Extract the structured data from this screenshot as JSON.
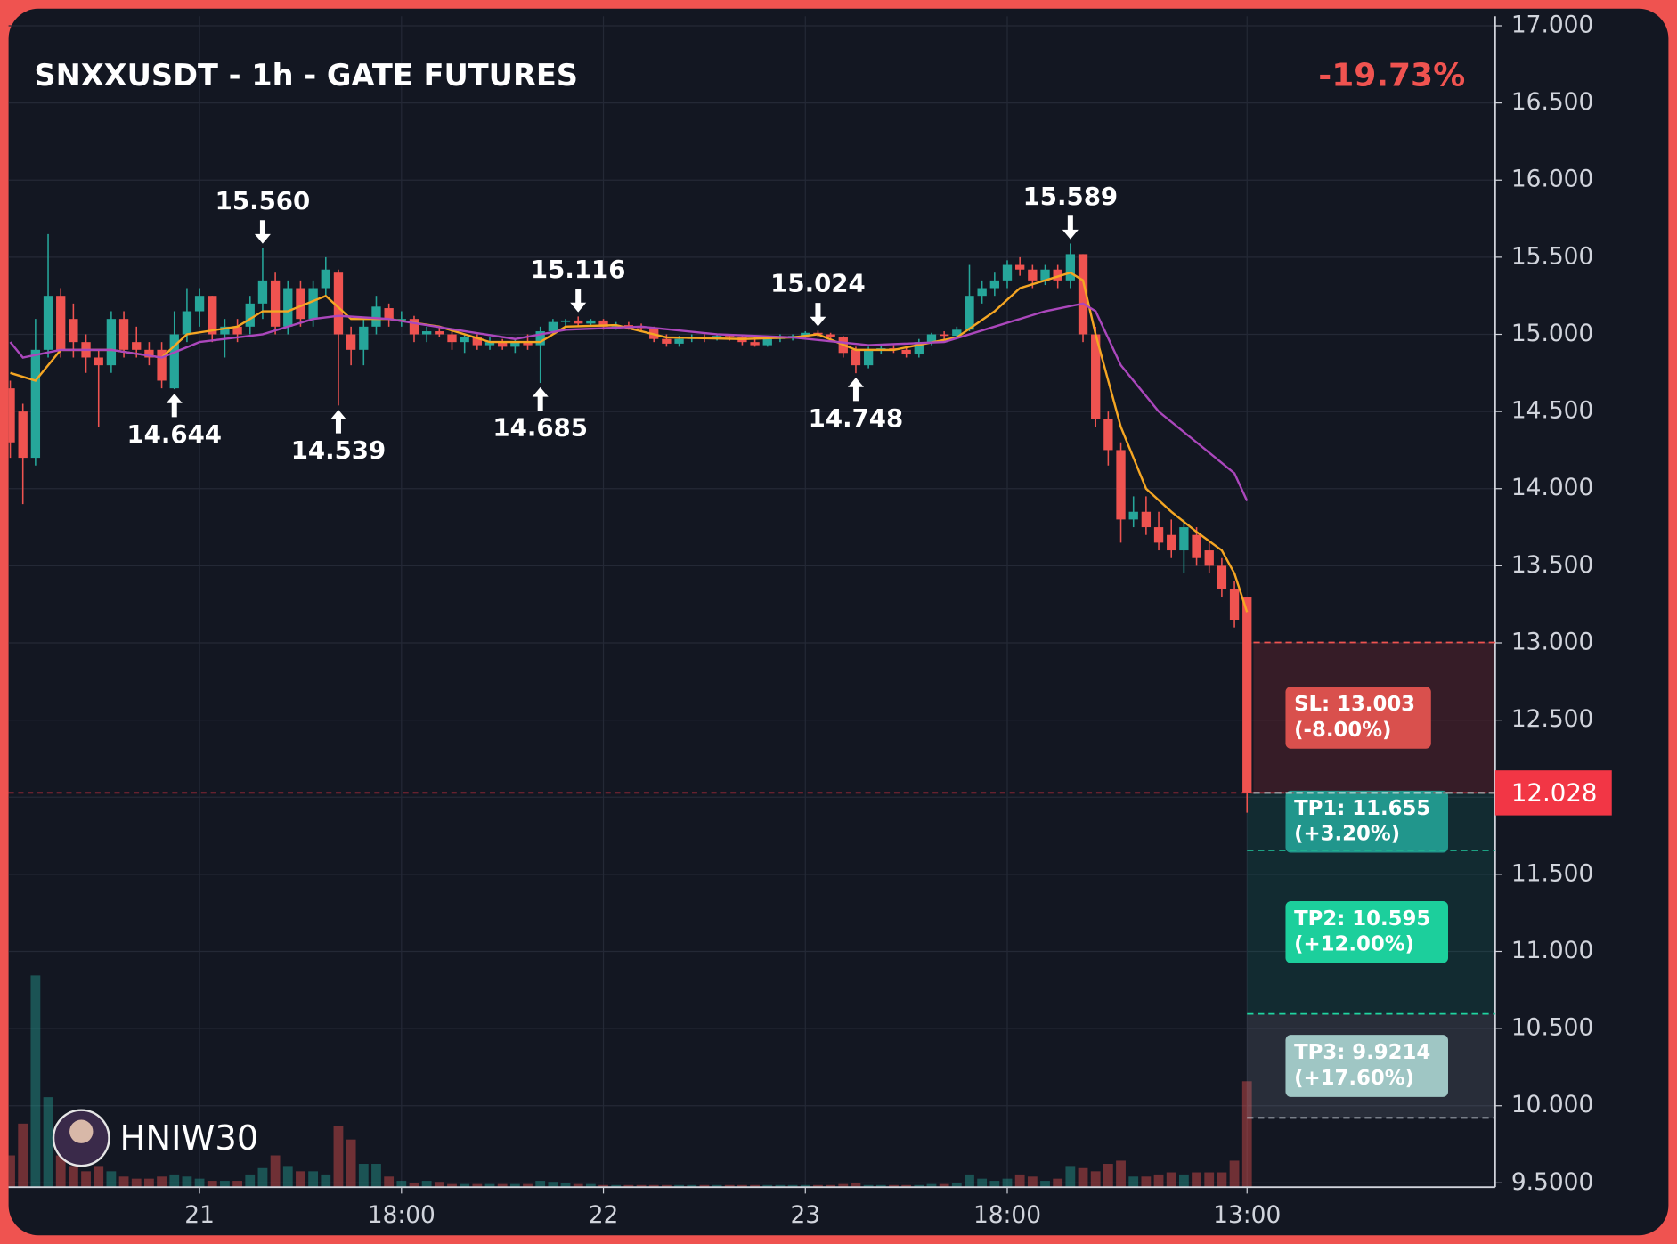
{
  "chart_data": {
    "type": "candlestick",
    "title": "SNXXUSDT - 1h - GATE FUTURES",
    "change": "-19.73%",
    "watermark": "HNIW30",
    "up_color": "#26a69a",
    "down_color": "#ef5350",
    "grid": true,
    "categories": [
      null,
      null,
      null,
      null,
      null,
      null,
      null,
      null,
      null,
      null,
      null,
      null,
      null,
      null,
      null,
      "21",
      null,
      null,
      null,
      null,
      null,
      null,
      null,
      null,
      null,
      null,
      null,
      null,
      null,
      null,
      null,
      "18:00",
      null,
      null,
      null,
      null,
      null,
      null,
      null,
      null,
      null,
      null,
      null,
      null,
      null,
      null,
      null,
      "22",
      null,
      null,
      null,
      null,
      null,
      null,
      null,
      null,
      null,
      null,
      null,
      null,
      null,
      null,
      null,
      "23",
      null,
      null,
      null,
      null,
      null,
      null,
      null,
      null,
      null,
      null,
      null,
      null,
      null,
      null,
      null,
      "18:00",
      null,
      null,
      null,
      null,
      null,
      null,
      null,
      null,
      null,
      null,
      null,
      null,
      null,
      null,
      null,
      null,
      null,
      null,
      "13:00"
    ],
    "ohlc": [
      [
        14.65,
        14.7,
        14.2,
        14.3
      ],
      [
        14.5,
        14.55,
        13.9,
        14.2
      ],
      [
        14.2,
        15.1,
        14.15,
        14.9
      ],
      [
        14.9,
        15.65,
        14.85,
        15.25
      ],
      [
        15.25,
        15.3,
        14.85,
        14.9
      ],
      [
        15.1,
        15.2,
        14.85,
        14.95
      ],
      [
        14.95,
        15.0,
        14.75,
        14.85
      ],
      [
        14.85,
        14.9,
        14.4,
        14.8
      ],
      [
        14.8,
        15.15,
        14.75,
        15.1
      ],
      [
        15.1,
        15.15,
        14.85,
        14.9
      ],
      [
        14.95,
        15.05,
        14.85,
        14.9
      ],
      [
        14.9,
        14.95,
        14.8,
        14.85
      ],
      [
        14.9,
        14.95,
        14.65,
        14.7
      ],
      [
        14.65,
        15.15,
        14.644,
        15.0
      ],
      [
        15.0,
        15.3,
        14.95,
        15.15
      ],
      [
        15.15,
        15.3,
        15.05,
        15.25
      ],
      [
        15.25,
        15.25,
        14.95,
        15.0
      ],
      [
        15.0,
        15.1,
        14.85,
        15.05
      ],
      [
        15.05,
        15.1,
        14.95,
        15.0
      ],
      [
        15.05,
        15.25,
        15.0,
        15.2
      ],
      [
        15.2,
        15.56,
        15.1,
        15.35
      ],
      [
        15.35,
        15.4,
        15.0,
        15.05
      ],
      [
        15.05,
        15.35,
        15.0,
        15.3
      ],
      [
        15.3,
        15.35,
        15.05,
        15.1
      ],
      [
        15.1,
        15.35,
        15.05,
        15.3
      ],
      [
        15.3,
        15.5,
        15.25,
        15.42
      ],
      [
        15.4,
        15.42,
        14.539,
        15.0
      ],
      [
        15.0,
        15.05,
        14.8,
        14.9
      ],
      [
        14.9,
        15.1,
        14.8,
        15.05
      ],
      [
        15.05,
        15.25,
        15.0,
        15.18
      ],
      [
        15.17,
        15.2,
        15.05,
        15.1
      ],
      [
        15.1,
        15.15,
        15.05,
        15.1
      ],
      [
        15.1,
        15.12,
        14.95,
        15.0
      ],
      [
        15.0,
        15.05,
        14.95,
        15.02
      ],
      [
        15.02,
        15.05,
        14.98,
        15.0
      ],
      [
        15.0,
        15.02,
        14.9,
        14.95
      ],
      [
        14.95,
        15.0,
        14.88,
        14.98
      ],
      [
        14.98,
        15.0,
        14.9,
        14.93
      ],
      [
        14.93,
        14.98,
        14.9,
        14.95
      ],
      [
        14.95,
        14.97,
        14.9,
        14.92
      ],
      [
        14.92,
        14.97,
        14.88,
        14.95
      ],
      [
        14.95,
        15.0,
        14.9,
        14.93
      ],
      [
        14.93,
        15.05,
        14.685,
        15.02
      ],
      [
        15.02,
        15.1,
        15.0,
        15.08
      ],
      [
        15.08,
        15.1,
        15.05,
        15.09
      ],
      [
        15.09,
        15.116,
        15.05,
        15.07
      ],
      [
        15.07,
        15.1,
        15.05,
        15.09
      ],
      [
        15.09,
        15.1,
        15.03,
        15.05
      ],
      [
        15.05,
        15.08,
        15.03,
        15.06
      ],
      [
        15.06,
        15.08,
        15.03,
        15.05
      ],
      [
        15.05,
        15.07,
        15.02,
        15.04
      ],
      [
        15.04,
        15.05,
        14.95,
        14.97
      ],
      [
        14.97,
        15.0,
        14.92,
        14.94
      ],
      [
        14.94,
        14.99,
        14.92,
        14.97
      ],
      [
        14.97,
        15.0,
        14.95,
        14.98
      ],
      [
        14.98,
        15.0,
        14.95,
        14.97
      ],
      [
        14.97,
        15.0,
        14.96,
        14.99
      ],
      [
        14.99,
        15.0,
        14.96,
        14.98
      ],
      [
        14.98,
        14.99,
        14.93,
        14.95
      ],
      [
        14.95,
        14.98,
        14.92,
        14.93
      ],
      [
        14.93,
        14.98,
        14.92,
        14.97
      ],
      [
        14.97,
        15.0,
        14.95,
        14.98
      ],
      [
        14.98,
        15.0,
        14.96,
        14.99
      ],
      [
        14.99,
        15.02,
        14.97,
        15.01
      ],
      [
        15.01,
        15.024,
        14.98,
        15.0
      ],
      [
        15.0,
        15.01,
        14.95,
        14.98
      ],
      [
        14.98,
        14.99,
        14.85,
        14.88
      ],
      [
        14.9,
        14.92,
        14.748,
        14.8
      ],
      [
        14.8,
        14.92,
        14.78,
        14.9
      ],
      [
        14.9,
        14.93,
        14.87,
        14.91
      ],
      [
        14.91,
        14.93,
        14.88,
        14.9
      ],
      [
        14.9,
        14.92,
        14.85,
        14.87
      ],
      [
        14.87,
        14.97,
        14.85,
        14.95
      ],
      [
        14.95,
        15.01,
        14.93,
        15.0
      ],
      [
        15.0,
        15.02,
        14.97,
        14.99
      ],
      [
        14.99,
        15.05,
        14.97,
        15.03
      ],
      [
        15.03,
        15.45,
        15.02,
        15.25
      ],
      [
        15.25,
        15.35,
        15.2,
        15.3
      ],
      [
        15.3,
        15.4,
        15.25,
        15.35
      ],
      [
        15.35,
        15.48,
        15.3,
        15.45
      ],
      [
        15.45,
        15.5,
        15.38,
        15.42
      ],
      [
        15.42,
        15.45,
        15.3,
        15.35
      ],
      [
        15.35,
        15.45,
        15.32,
        15.42
      ],
      [
        15.42,
        15.45,
        15.3,
        15.35
      ],
      [
        15.35,
        15.589,
        15.3,
        15.52
      ],
      [
        15.52,
        15.52,
        14.95,
        15.0
      ],
      [
        15.0,
        15.05,
        14.4,
        14.45
      ],
      [
        14.45,
        14.5,
        14.15,
        14.25
      ],
      [
        14.25,
        14.3,
        13.65,
        13.8
      ],
      [
        13.8,
        13.95,
        13.75,
        13.85
      ],
      [
        13.85,
        13.95,
        13.7,
        13.75
      ],
      [
        13.75,
        13.85,
        13.6,
        13.65
      ],
      [
        13.7,
        13.8,
        13.55,
        13.6
      ],
      [
        13.6,
        13.8,
        13.45,
        13.75
      ],
      [
        13.7,
        13.75,
        13.5,
        13.55
      ],
      [
        13.6,
        13.65,
        13.45,
        13.5
      ],
      [
        13.5,
        13.55,
        13.3,
        13.35
      ],
      [
        13.35,
        13.4,
        13.1,
        13.15
      ],
      [
        13.3,
        13.3,
        11.9,
        12.028
      ]
    ],
    "volume": [
      30,
      60,
      200,
      85,
      30,
      20,
      15,
      20,
      15,
      10,
      8,
      8,
      10,
      12,
      10,
      8,
      6,
      6,
      6,
      12,
      18,
      30,
      20,
      15,
      15,
      12,
      58,
      45,
      22,
      22,
      10,
      6,
      4,
      6,
      5,
      3,
      3,
      3,
      3,
      3,
      3,
      3,
      6,
      5,
      4,
      3,
      3,
      2,
      2,
      2,
      2,
      2,
      2,
      2,
      2,
      2,
      2,
      2,
      2,
      2,
      2,
      2,
      2,
      2,
      2,
      2,
      3,
      4,
      2,
      2,
      2,
      2,
      2,
      3,
      3,
      4,
      12,
      8,
      6,
      8,
      12,
      10,
      6,
      8,
      20,
      18,
      15,
      22,
      25,
      10,
      10,
      12,
      14,
      12,
      14,
      14,
      14,
      25,
      100
    ],
    "ma": [
      {
        "color": "#f5a623",
        "x": [
          0,
          2,
          4,
          8,
          12,
          14,
          18,
          20,
          22,
          25,
          27,
          30,
          34,
          38,
          42,
          44,
          48,
          52,
          58,
          62,
          64,
          67,
          70,
          75,
          78,
          80,
          82,
          84,
          85,
          86,
          88,
          90,
          92,
          94,
          96,
          97,
          98
        ],
        "values": [
          14.75,
          14.7,
          14.9,
          14.9,
          14.85,
          15.0,
          15.05,
          15.15,
          15.15,
          15.25,
          15.1,
          15.1,
          15.05,
          14.95,
          14.95,
          15.05,
          15.06,
          14.98,
          14.97,
          14.98,
          15.0,
          14.9,
          14.9,
          14.98,
          15.15,
          15.3,
          15.35,
          15.4,
          15.35,
          15.0,
          14.4,
          14.0,
          13.85,
          13.72,
          13.6,
          13.45,
          13.2
        ]
      },
      {
        "color": "#ab47bc",
        "x": [
          0,
          1,
          4,
          8,
          12,
          15,
          20,
          24,
          26,
          30,
          36,
          40,
          44,
          50,
          56,
          62,
          68,
          74,
          78,
          82,
          85,
          86,
          88,
          91,
          94,
          97,
          98
        ],
        "values": [
          14.95,
          14.85,
          14.9,
          14.9,
          14.85,
          14.95,
          15.0,
          15.1,
          15.12,
          15.1,
          15.02,
          14.97,
          15.03,
          15.05,
          15.0,
          14.98,
          14.93,
          14.95,
          15.05,
          15.15,
          15.2,
          15.15,
          14.8,
          14.5,
          14.3,
          14.1,
          13.92
        ]
      }
    ],
    "annotations": [
      {
        "label": "15.560",
        "value": 15.56,
        "x": 20,
        "dir": "high"
      },
      {
        "label": "14.644",
        "value": 14.644,
        "x": 13,
        "dir": "low"
      },
      {
        "label": "14.539",
        "value": 14.539,
        "x": 26,
        "dir": "low"
      },
      {
        "label": "15.116",
        "value": 15.116,
        "x": 45,
        "dir": "high"
      },
      {
        "label": "14.685",
        "value": 14.685,
        "x": 42,
        "dir": "low"
      },
      {
        "label": "15.024",
        "value": 15.024,
        "x": 64,
        "dir": "high"
      },
      {
        "label": "14.748",
        "value": 14.748,
        "x": 67,
        "dir": "low"
      },
      {
        "label": "15.589",
        "value": 15.589,
        "x": 84,
        "dir": "high"
      }
    ],
    "entry": {
      "label": "12.028",
      "value": 12.028,
      "color": "#f23645"
    },
    "stop_loss": {
      "label": "SL: 13.003",
      "note": "(-8.00%)",
      "value": 13.003,
      "color": "#d9504d",
      "zone": "rgba(242,54,69,0.16)",
      "line": "#ef5350"
    },
    "targets": [
      {
        "label": "TP1: 11.655",
        "note": "(+3.20%)",
        "value": 11.655,
        "color": "#21968c",
        "zone": "rgba(16,150,130,0.16)",
        "line": "#1fb38f"
      },
      {
        "label": "TP2: 10.595",
        "note": "(+12.00%)",
        "value": 10.595,
        "color": "#1ccf9c",
        "zone": "rgba(16,150,130,0.16)",
        "line": "#1fd4a0"
      },
      {
        "label": "TP3: 9.9214",
        "note": "(+17.60%)",
        "value": 9.9214,
        "color": "#9fc6c4",
        "zone": "rgba(140,150,165,0.18)",
        "line": "#c8d0d8"
      }
    ],
    "ylim": [
      9.5,
      17
    ],
    "yticks": [
      {
        "value": 17,
        "label": "17.000"
      },
      {
        "value": 16.5,
        "label": "16.500"
      },
      {
        "value": 16,
        "label": "16.000"
      },
      {
        "value": 15.5,
        "label": "15.500"
      },
      {
        "value": 15,
        "label": "15.000"
      },
      {
        "value": 14.5,
        "label": "14.500"
      },
      {
        "value": 14,
        "label": "14.000"
      },
      {
        "value": 13.5,
        "label": "13.500"
      },
      {
        "value": 13,
        "label": "13.000"
      },
      {
        "value": 12.5,
        "label": "12.500"
      },
      {
        "value": 12,
        "label": "12.000"
      },
      {
        "value": 11.5,
        "label": "11.500"
      },
      {
        "value": 11,
        "label": "11.000"
      },
      {
        "value": 10.5,
        "label": "10.500"
      },
      {
        "value": 10,
        "label": "10.000"
      },
      {
        "value": 9.5,
        "label": "9.5000"
      }
    ]
  }
}
